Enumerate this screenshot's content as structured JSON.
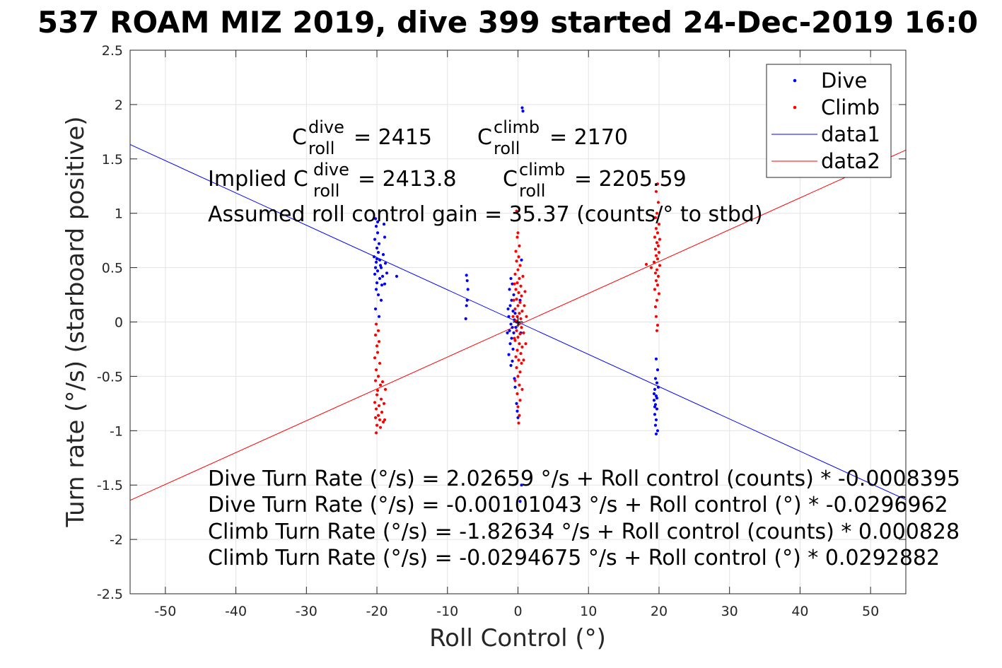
{
  "figure": {
    "title": "537 ROAM MIZ 2019, dive 399 started 24-Dec-2019 16:0"
  },
  "chart_data": {
    "type": "scatter",
    "title": "537 ROAM MIZ 2019, dive 399 started 24-Dec-2019 16:0",
    "xlabel": "Roll Control (°)",
    "ylabel": "Turn rate (°/s) (starboard positive)",
    "xlim": [
      -55,
      55
    ],
    "ylim": [
      -2.5,
      2.5
    ],
    "xticks": [
      -50,
      -40,
      -30,
      -20,
      -10,
      0,
      10,
      20,
      30,
      40,
      50
    ],
    "yticks": [
      2.5,
      2,
      1.5,
      1,
      0.5,
      0,
      -0.5,
      -1,
      -1.5,
      -2,
      -2.5
    ],
    "xtick_labels": [
      "-50",
      "-40",
      "-30",
      "-20",
      "-10",
      "0",
      "10",
      "20",
      "30",
      "40",
      "50"
    ],
    "ytick_labels": [
      "2.5",
      "2",
      "1.5",
      "1",
      "0.5",
      "0",
      "-0.5",
      "-1",
      "-1.5",
      "-2",
      "-2.5"
    ],
    "grid": true,
    "legend_position": "top-right",
    "legend": [
      {
        "label": "Dive",
        "kind": "dot",
        "color": "#0000ff"
      },
      {
        "label": "Climb",
        "kind": "dot",
        "color": "#ff0000"
      },
      {
        "label": "data1",
        "kind": "line",
        "color": "#0000ff"
      },
      {
        "label": "data2",
        "kind": "line",
        "color": "#ff0000"
      }
    ],
    "series": [
      {
        "name": "Dive",
        "kind": "scatter",
        "color": "#0000ff",
        "points": [
          [
            -20.2,
            0.95
          ],
          [
            -20.1,
            0.88
          ],
          [
            -19.9,
            0.82
          ],
          [
            -20.3,
            0.76
          ],
          [
            -19.7,
            0.72
          ],
          [
            -20.0,
            0.68
          ],
          [
            -19.8,
            0.64
          ],
          [
            -20.4,
            0.6
          ],
          [
            -19.6,
            0.57
          ],
          [
            -20.1,
            0.55
          ],
          [
            -19.5,
            0.52
          ],
          [
            -20.2,
            0.5
          ],
          [
            -19.4,
            0.5
          ],
          [
            -19.9,
            0.47
          ],
          [
            -20.3,
            0.44
          ],
          [
            -19.2,
            0.42
          ],
          [
            -19.6,
            0.4
          ],
          [
            -20.0,
            0.36
          ],
          [
            -19.3,
            0.34
          ],
          [
            -20.1,
            0.3
          ],
          [
            -19.8,
            0.25
          ],
          [
            -19.4,
            0.2
          ],
          [
            -20.2,
            0.12
          ],
          [
            -19.7,
            0.05
          ],
          [
            -19.0,
            0.9
          ],
          [
            -18.9,
            0.78
          ],
          [
            -19.1,
            0.62
          ],
          [
            -18.8,
            0.54
          ],
          [
            -18.6,
            0.45
          ],
          [
            -17.2,
            0.42
          ],
          [
            -18.9,
            0.35
          ],
          [
            -19.9,
            0.92
          ],
          [
            -20.0,
            0.58
          ],
          [
            -7.3,
            0.43
          ],
          [
            -7.2,
            0.38
          ],
          [
            -7.1,
            0.3
          ],
          [
            -7.2,
            0.2
          ],
          [
            -7.3,
            0.15
          ],
          [
            -7.4,
            0.03
          ],
          [
            -1.0,
            0.4
          ],
          [
            -0.8,
            0.35
          ],
          [
            -1.2,
            0.3
          ],
          [
            -0.6,
            0.25
          ],
          [
            -0.9,
            0.2
          ],
          [
            -1.1,
            0.15
          ],
          [
            -0.7,
            0.1
          ],
          [
            -1.3,
            0.05
          ],
          [
            -0.5,
            0.02
          ],
          [
            -1.0,
            -0.02
          ],
          [
            -0.8,
            -0.05
          ],
          [
            -1.2,
            -0.08
          ],
          [
            -0.6,
            -0.1
          ],
          [
            -0.9,
            -0.15
          ],
          [
            -1.1,
            -0.2
          ],
          [
            -0.7,
            -0.25
          ],
          [
            -1.3,
            -0.3
          ],
          [
            -0.8,
            -0.36
          ],
          [
            -1.0,
            -0.4
          ],
          [
            -0.4,
            0.08
          ],
          [
            -0.3,
            -0.05
          ],
          [
            -1.4,
            0.12
          ],
          [
            -1.5,
            -0.1
          ],
          [
            -0.2,
            0.0
          ],
          [
            -0.5,
            -0.52
          ],
          [
            -0.4,
            -0.6
          ],
          [
            -0.2,
            -0.75
          ],
          [
            -0.1,
            -0.82
          ],
          [
            0.0,
            -0.88
          ],
          [
            0.6,
            1.97
          ],
          [
            0.7,
            1.94
          ],
          [
            0.5,
            0.57
          ],
          [
            0.3,
            0.2
          ],
          [
            0.4,
            -0.1
          ],
          [
            0.5,
            -1.5
          ],
          [
            0.3,
            -1.65
          ],
          [
            19.6,
            -0.34
          ],
          [
            19.8,
            -0.44
          ],
          [
            19.5,
            -0.52
          ],
          [
            19.7,
            -0.56
          ],
          [
            19.4,
            -0.62
          ],
          [
            19.6,
            -0.68
          ],
          [
            19.3,
            -0.72
          ],
          [
            19.5,
            -0.76
          ],
          [
            19.7,
            -0.8
          ],
          [
            19.4,
            -0.85
          ],
          [
            19.6,
            -0.9
          ],
          [
            19.5,
            -0.95
          ],
          [
            19.8,
            -1.0
          ],
          [
            19.6,
            -1.03
          ],
          [
            19.3,
            -0.66
          ],
          [
            19.7,
            -0.7
          ],
          [
            19.9,
            -0.6
          ],
          [
            19.4,
            -0.78
          ]
        ]
      },
      {
        "name": "Climb",
        "kind": "scatter",
        "color": "#ff0000",
        "points": [
          [
            -20.1,
            -0.02
          ],
          [
            -19.8,
            -0.08
          ],
          [
            -20.2,
            -0.12
          ],
          [
            -19.7,
            -0.18
          ],
          [
            -20.0,
            -0.22
          ],
          [
            -19.9,
            -0.28
          ],
          [
            -20.3,
            -0.33
          ],
          [
            -19.6,
            -0.38
          ],
          [
            -20.1,
            -0.44
          ],
          [
            -19.8,
            -0.5
          ],
          [
            -20.2,
            -0.54
          ],
          [
            -19.5,
            -0.58
          ],
          [
            -19.9,
            -0.63
          ],
          [
            -20.0,
            -0.67
          ],
          [
            -19.4,
            -0.71
          ],
          [
            -20.3,
            -0.74
          ],
          [
            -19.7,
            -0.77
          ],
          [
            -20.1,
            -0.8
          ],
          [
            -19.3,
            -0.83
          ],
          [
            -19.8,
            -0.86
          ],
          [
            -20.2,
            -0.88
          ],
          [
            -19.6,
            -0.9
          ],
          [
            -19.1,
            -0.92
          ],
          [
            -20.0,
            -0.95
          ],
          [
            -19.5,
            -0.97
          ],
          [
            -20.1,
            -1.02
          ],
          [
            -18.9,
            -0.9
          ],
          [
            -19.0,
            -0.75
          ],
          [
            -18.8,
            -0.62
          ],
          [
            -19.2,
            -0.55
          ],
          [
            -0.2,
            1.02
          ],
          [
            0.0,
            0.82
          ],
          [
            -0.1,
            0.78
          ],
          [
            0.2,
            0.7
          ],
          [
            -0.3,
            0.65
          ],
          [
            0.1,
            0.6
          ],
          [
            -0.2,
            0.56
          ],
          [
            0.3,
            0.52
          ],
          [
            0.0,
            0.48
          ],
          [
            -0.4,
            0.44
          ],
          [
            0.2,
            0.4
          ],
          [
            -0.1,
            0.36
          ],
          [
            0.4,
            0.33
          ],
          [
            -0.3,
            0.3
          ],
          [
            0.1,
            0.27
          ],
          [
            0.5,
            0.24
          ],
          [
            -0.2,
            0.21
          ],
          [
            0.3,
            0.18
          ],
          [
            0.0,
            0.15
          ],
          [
            -0.4,
            0.12
          ],
          [
            0.6,
            0.1
          ],
          [
            0.2,
            0.08
          ],
          [
            -0.1,
            0.05
          ],
          [
            0.4,
            0.03
          ],
          [
            -0.3,
            0.01
          ],
          [
            0.1,
            -0.02
          ],
          [
            0.5,
            -0.05
          ],
          [
            -0.2,
            -0.08
          ],
          [
            0.3,
            -0.11
          ],
          [
            0.0,
            -0.14
          ],
          [
            -0.4,
            -0.17
          ],
          [
            0.2,
            -0.2
          ],
          [
            0.6,
            -0.23
          ],
          [
            -0.1,
            -0.26
          ],
          [
            0.4,
            -0.29
          ],
          [
            -0.3,
            -0.32
          ],
          [
            0.1,
            -0.35
          ],
          [
            0.5,
            -0.38
          ],
          [
            -0.2,
            -0.42
          ],
          [
            0.3,
            -0.46
          ],
          [
            0.0,
            -0.5
          ],
          [
            -0.4,
            -0.54
          ],
          [
            0.2,
            -0.58
          ],
          [
            0.6,
            -0.62
          ],
          [
            -0.1,
            -0.66
          ],
          [
            0.3,
            -0.72
          ],
          [
            0.0,
            -0.78
          ],
          [
            0.2,
            -0.86
          ],
          [
            0.1,
            -0.93
          ],
          [
            1.0,
            0.28
          ],
          [
            0.9,
            0.15
          ],
          [
            1.2,
            0.05
          ],
          [
            0.8,
            -0.1
          ],
          [
            1.1,
            -0.2
          ],
          [
            -0.6,
            0.2
          ],
          [
            -0.7,
            0.05
          ],
          [
            -0.5,
            -0.15
          ],
          [
            0.7,
            0.42
          ],
          [
            0.8,
            -0.35
          ],
          [
            -0.5,
            0.35
          ],
          [
            19.8,
            1.27
          ],
          [
            19.6,
            1.2
          ],
          [
            19.9,
            1.1
          ],
          [
            19.7,
            1.0
          ],
          [
            19.5,
            0.96
          ],
          [
            20.0,
            0.9
          ],
          [
            19.6,
            0.86
          ],
          [
            19.8,
            0.82
          ],
          [
            19.4,
            0.78
          ],
          [
            20.1,
            0.76
          ],
          [
            19.7,
            0.73
          ],
          [
            19.9,
            0.7
          ],
          [
            19.5,
            0.67
          ],
          [
            20.0,
            0.64
          ],
          [
            19.6,
            0.61
          ],
          [
            19.8,
            0.58
          ],
          [
            19.3,
            0.55
          ],
          [
            20.1,
            0.52
          ],
          [
            18.2,
            0.53
          ],
          [
            18.9,
            0.5
          ],
          [
            19.7,
            0.48
          ],
          [
            19.5,
            0.45
          ],
          [
            19.9,
            0.42
          ],
          [
            19.6,
            0.38
          ],
          [
            19.8,
            0.34
          ],
          [
            19.4,
            0.3
          ],
          [
            20.0,
            0.26
          ],
          [
            19.7,
            0.2
          ],
          [
            19.5,
            0.14
          ],
          [
            19.6,
            0.05
          ],
          [
            19.8,
            -0.03
          ],
          [
            19.7,
            -0.08
          ]
        ]
      },
      {
        "name": "data1",
        "kind": "line",
        "color": "#0000ff",
        "intercept": -0.00101043,
        "slope": -0.0296962
      },
      {
        "name": "data2",
        "kind": "line",
        "color": "#ff0000",
        "intercept": -0.0294675,
        "slope": 0.0292882
      }
    ],
    "annotations": {
      "c_dive": {
        "prefix": "C",
        "sup": "dive",
        "sub": "roll",
        "value": "= 2415"
      },
      "c_climb": {
        "prefix": "C",
        "sup": "climb",
        "sub": "roll",
        "value": "= 2170"
      },
      "implied_dive": {
        "lead": "Implied C",
        "sup": "dive",
        "sub": "roll",
        "value": "= 2413.8"
      },
      "implied_climb": {
        "prefix": "C",
        "sup": "climb",
        "sub": "roll",
        "value": "= 2205.59"
      },
      "gain": "Assumed roll control gain = 35.37 (counts/° to stbd)",
      "equations": [
        "Dive Turn Rate (°/s) = 2.02659 °/s + Roll control (counts) * -0.0008395",
        "Dive Turn Rate (°/s) = -0.00101043 °/s + Roll control (°) * -0.0296962",
        "Climb Turn Rate (°/s) = -1.82634 °/s + Roll control (counts) * 0.000828",
        "Climb Turn Rate (°/s) = -0.0294675 °/s + Roll control (°) * 0.0292882"
      ]
    },
    "origin_marker": {
      "x": 0,
      "y": 0,
      "symbol": "+",
      "color": "#000000"
    }
  }
}
